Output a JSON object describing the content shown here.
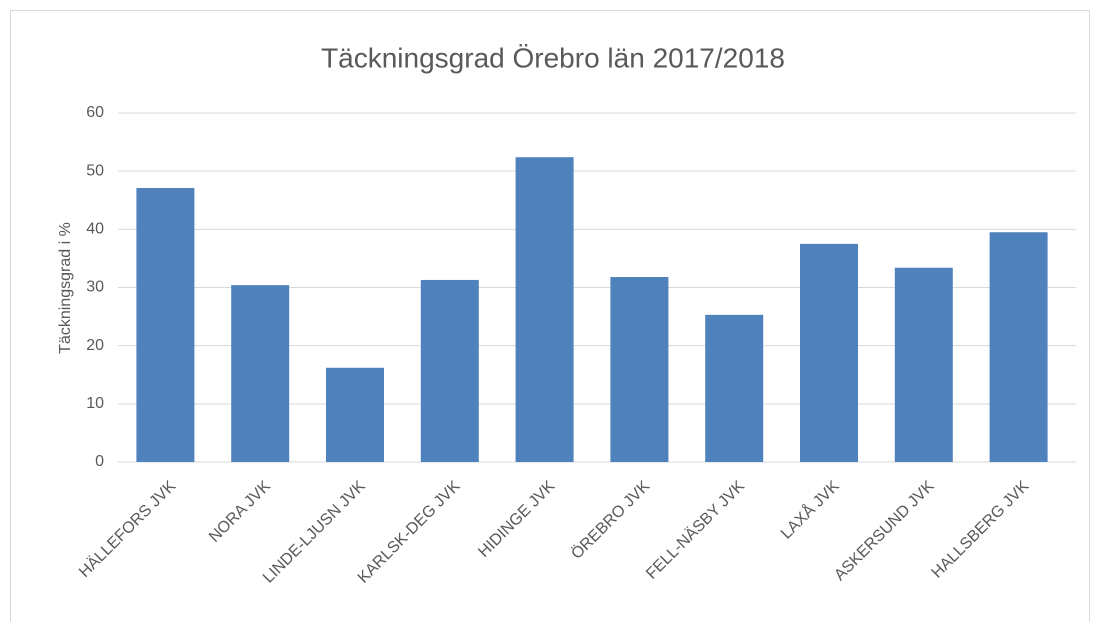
{
  "chart_data": {
    "type": "bar",
    "title": "Täckningsgrad Örebro län 2017/2018",
    "y_label": "Täckningsgrad i %",
    "categories": [
      "HÄLLEFORS JVK",
      "NORA JVK",
      "LINDE-LJUSN JVK",
      "KARLSK-DEG JVK",
      "HIDINGE JVK",
      "ÖREBRO JVK",
      "FELL-NÄSBY JVK",
      "LAXÅ JVK",
      "ASKERSUND JVK",
      "HALLSBERG JVK"
    ],
    "values": [
      47.1,
      30.4,
      16.2,
      31.3,
      52.4,
      31.8,
      25.3,
      37.5,
      33.4,
      39.5
    ],
    "color": "#4f81bd",
    "ylim": [
      0,
      60
    ],
    "yticks": [
      0,
      10,
      20,
      30,
      40,
      50,
      60
    ],
    "grid": true
  }
}
